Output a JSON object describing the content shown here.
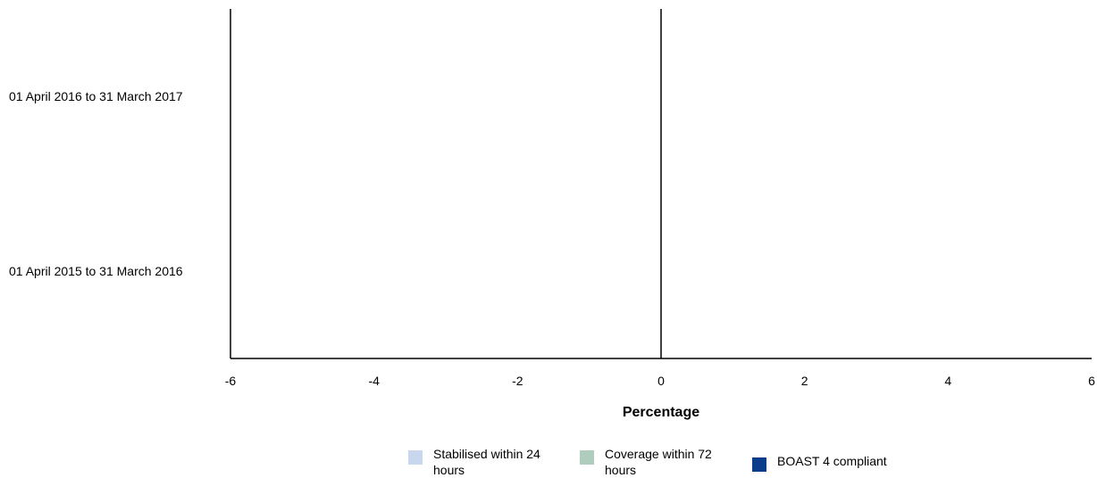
{
  "chart_data": {
    "type": "bar",
    "orientation": "horizontal",
    "categories": [
      "01 April 2016 to 31 March 2017",
      "01 April 2015 to 31 March 2016"
    ],
    "series": [
      {
        "name": "Stabilised within 24 hours",
        "values": [
          0,
          0
        ],
        "color": "#c9d7ee"
      },
      {
        "name": "Coverage within 72 hours",
        "values": [
          0,
          0
        ],
        "color": "#aecdbc"
      },
      {
        "name": "BOAST 4 compliant",
        "values": [
          0,
          0
        ],
        "color": "#0b3c8c"
      }
    ],
    "title": "",
    "xlabel": "Percentage",
    "ylabel": "",
    "xlim": [
      -6,
      6
    ],
    "xticks": [
      -6,
      -4,
      -2,
      0,
      2,
      4,
      6
    ],
    "grid": false,
    "legend_position": "bottom"
  }
}
